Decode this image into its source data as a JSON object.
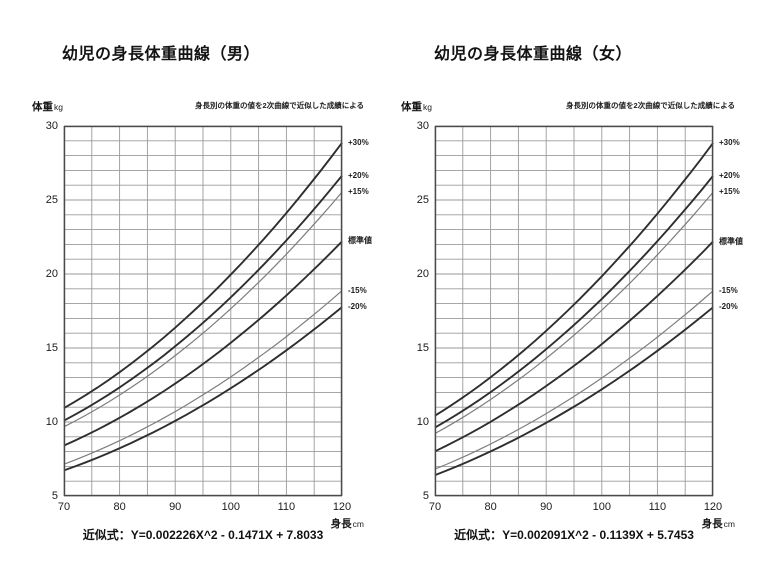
{
  "colors": {
    "background": "#ffffff",
    "text": "#1c1c1c",
    "grid": "#9a9a9a",
    "plot_border": "#4a4a4a",
    "curve_dark": "#2e2e2e",
    "curve_light": "#7d7d7d"
  },
  "chart_data": [
    {
      "type": "line",
      "title": "幼児の身長体重曲線（男）",
      "subtitle": "身長別の体重の値を2次曲線で近似した成績による",
      "ylabel": "体重",
      "ylabel_unit": "kg",
      "xlabel": "身長",
      "xlabel_unit": "cm",
      "formula": "近似式：Y=0.002226X^2 - 0.1471X + 7.8033",
      "quadratic": {
        "a": 0.002226,
        "b": -0.1471,
        "c": 7.8033
      },
      "xlim": [
        70,
        120
      ],
      "ylim": [
        5,
        30
      ],
      "xticks": [
        70,
        80,
        90,
        100,
        110,
        120
      ],
      "yticks": [
        5,
        10,
        15,
        20,
        25,
        30
      ],
      "grid": {
        "on": true,
        "x_step": 5,
        "y_step": 1
      },
      "legend_position": "right-of-plot",
      "x": [
        70,
        80,
        90,
        100,
        110,
        120
      ],
      "series": [
        {
          "name": "+30%",
          "multiplier": 1.3,
          "line": "dark",
          "values": [
            10.94,
            13.37,
            16.37,
            19.96,
            24.12,
            28.87
          ]
        },
        {
          "name": "+20%",
          "multiplier": 1.2,
          "line": "dark",
          "values": [
            10.1,
            12.34,
            15.11,
            18.42,
            22.27,
            26.65
          ]
        },
        {
          "name": "+15%",
          "multiplier": 1.15,
          "line": "light",
          "values": [
            9.68,
            11.82,
            14.48,
            17.66,
            21.34,
            25.54
          ]
        },
        {
          "name": "標準値",
          "multiplier": 1.0,
          "line": "dark",
          "values": [
            8.41,
            10.28,
            12.59,
            15.35,
            18.56,
            22.21
          ]
        },
        {
          "name": "-15%",
          "multiplier": 0.85,
          "line": "light",
          "values": [
            7.15,
            8.74,
            10.71,
            13.05,
            15.77,
            18.87
          ]
        },
        {
          "name": "-20%",
          "multiplier": 0.8,
          "line": "dark",
          "values": [
            6.73,
            8.23,
            10.08,
            12.28,
            14.85,
            17.76
          ]
        }
      ]
    },
    {
      "type": "line",
      "title": "幼児の身長体重曲線（女）",
      "subtitle": "身長別の体重の値を2次曲線で近似した成績による",
      "ylabel": "体重",
      "ylabel_unit": "kg",
      "xlabel": "身長",
      "xlabel_unit": "cm",
      "formula": "近似式：Y=0.002091X^2 - 0.1139X + 5.7453",
      "quadratic": {
        "a": 0.002091,
        "b": -0.1139,
        "c": 5.7453
      },
      "xlim": [
        70,
        120
      ],
      "ylim": [
        5,
        30
      ],
      "xticks": [
        70,
        80,
        90,
        100,
        110,
        120
      ],
      "yticks": [
        5,
        10,
        15,
        20,
        25,
        30
      ],
      "grid": {
        "on": true,
        "x_step": 5,
        "y_step": 1
      },
      "legend_position": "right-of-plot",
      "x": [
        70,
        80,
        90,
        100,
        110,
        120
      ],
      "series": [
        {
          "name": "+30%",
          "multiplier": 1.3,
          "line": "dark",
          "values": [
            10.42,
            13.02,
            16.16,
            19.84,
            24.07,
            28.84
          ]
        },
        {
          "name": "+20%",
          "multiplier": 1.2,
          "line": "dark",
          "values": [
            9.62,
            12.02,
            14.92,
            18.32,
            22.22,
            26.63
          ]
        },
        {
          "name": "+15%",
          "multiplier": 1.15,
          "line": "light",
          "values": [
            9.22,
            11.52,
            14.3,
            17.56,
            21.3,
            25.52
          ]
        },
        {
          "name": "標準値",
          "multiplier": 1.0,
          "line": "dark",
          "values": [
            8.02,
            10.02,
            12.43,
            15.27,
            18.52,
            22.19
          ]
        },
        {
          "name": "-15%",
          "multiplier": 0.85,
          "line": "light",
          "values": [
            6.82,
            8.51,
            10.57,
            12.98,
            15.74,
            18.86
          ]
        },
        {
          "name": "-20%",
          "multiplier": 0.8,
          "line": "dark",
          "values": [
            6.41,
            8.01,
            9.95,
            12.21,
            14.81,
            17.75
          ]
        }
      ]
    }
  ]
}
